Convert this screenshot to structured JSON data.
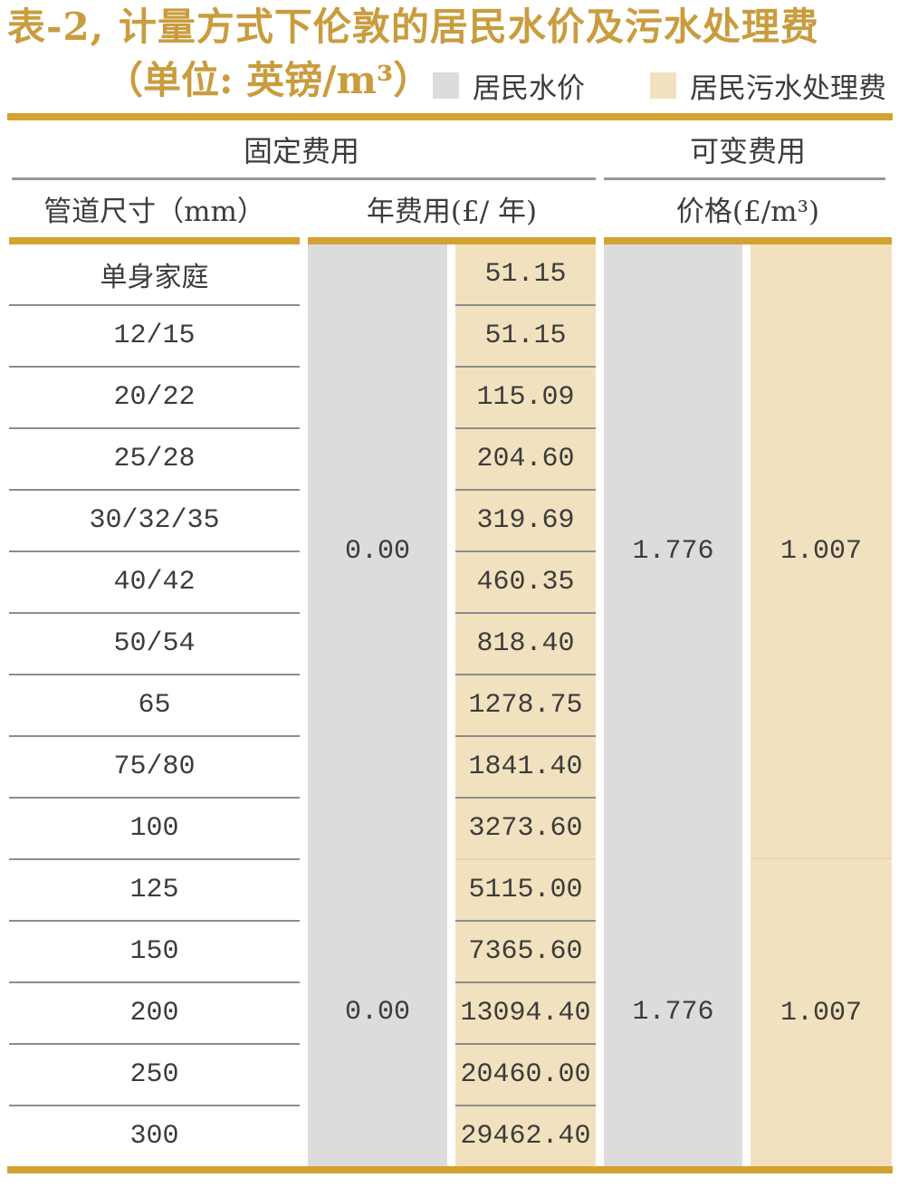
{
  "title": {
    "line1": "表-2, 计量方式下伦敦的居民水价及污水处理费",
    "line2": "（单位: 英镑/m³）"
  },
  "legend": {
    "water": {
      "label": "居民水价",
      "color": "#DCDCDC"
    },
    "sewage": {
      "label": "居民污水处理费",
      "color": "#F2E1BE"
    }
  },
  "header": {
    "group_fixed": "固定费用",
    "group_variable": "可变费用",
    "col_pipe": "管道尺寸（mm）",
    "col_annual": "年费用(£/ 年)",
    "col_price": "价格(£/m³)"
  },
  "table": {
    "pipe_sizes": [
      "单身家庭",
      "12/15",
      "20/22",
      "25/28",
      "30/32/35",
      "40/42",
      "50/54",
      "65",
      "75/80",
      "100",
      "125",
      "150",
      "200",
      "250",
      "300"
    ],
    "annual_fee_sewage": [
      "51.15",
      "51.15",
      "115.09",
      "204.60",
      "319.69",
      "460.35",
      "818.40",
      "1278.75",
      "1841.40",
      "3273.60",
      "5115.00",
      "7365.60",
      "13094.40",
      "20460.00",
      "29462.40"
    ],
    "merged": {
      "annual_fee_water": [
        "0.00",
        "0.00"
      ],
      "price_water": [
        "1.776",
        "1.776"
      ],
      "price_sewage": [
        "1.007",
        "1.007"
      ]
    },
    "group_split_after_index": 9,
    "group_row_counts": [
      10,
      5
    ]
  },
  "colors": {
    "accent_gold": "#D3A231",
    "title_gold": "#C99C3E",
    "water_fill": "#DCDCDC",
    "sewage_fill": "#F2E1BE",
    "text_dark": "#3C3C3C",
    "row_divider": "#8C8C8C",
    "light_divider": "#E9D6A9"
  },
  "chart_data": {
    "type": "table",
    "title": "表-2, 计量方式下伦敦的居民水价及污水处理费（单位: 英镑/m³）",
    "legend": [
      "居民水价",
      "居民污水处理费"
    ],
    "column_groups": [
      "固定费用",
      "可变费用"
    ],
    "columns": [
      "管道尺寸（mm）",
      "年费用(£/ 年) 居民水价",
      "年费用(£/ 年) 居民污水处理费",
      "价格(£/m³) 居民水价",
      "价格(£/m³) 居民污水处理费"
    ],
    "rows": [
      [
        "单身家庭",
        0.0,
        51.15,
        1.776,
        1.007
      ],
      [
        "12/15",
        0.0,
        51.15,
        1.776,
        1.007
      ],
      [
        "20/22",
        0.0,
        115.09,
        1.776,
        1.007
      ],
      [
        "25/28",
        0.0,
        204.6,
        1.776,
        1.007
      ],
      [
        "30/32/35",
        0.0,
        319.69,
        1.776,
        1.007
      ],
      [
        "40/42",
        0.0,
        460.35,
        1.776,
        1.007
      ],
      [
        "50/54",
        0.0,
        818.4,
        1.776,
        1.007
      ],
      [
        "65",
        0.0,
        1278.75,
        1.776,
        1.007
      ],
      [
        "75/80",
        0.0,
        1841.4,
        1.776,
        1.007
      ],
      [
        "100",
        0.0,
        3273.6,
        1.776,
        1.007
      ],
      [
        "125",
        0.0,
        5115.0,
        1.776,
        1.007
      ],
      [
        "150",
        0.0,
        7365.6,
        1.776,
        1.007
      ],
      [
        "200",
        0.0,
        13094.4,
        1.776,
        1.007
      ],
      [
        "250",
        0.0,
        20460.0,
        1.776,
        1.007
      ],
      [
        "300",
        0.0,
        29462.4,
        1.776,
        1.007
      ]
    ]
  }
}
